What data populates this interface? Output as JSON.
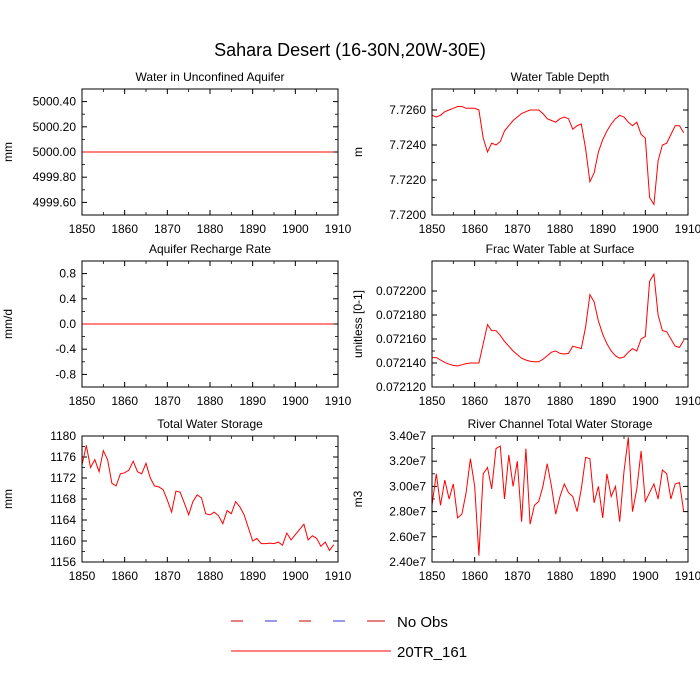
{
  "page_title": "Sahara Desert (16-30N,20W-30E)",
  "legend": [
    {
      "label": "No Obs",
      "style": "dashed",
      "colors": [
        "#cc0000",
        "#3333cc"
      ]
    },
    {
      "label": "20TR_161",
      "style": "solid",
      "colors": [
        "#ff0000"
      ]
    }
  ],
  "chart_data": [
    {
      "type": "line",
      "title": "Water in Unconfined Aquifer",
      "ylabel": "mm",
      "xlim": [
        1850,
        1910
      ],
      "ylim": [
        4999.5,
        5000.5
      ],
      "xticks": [
        "1850",
        "1860",
        "1870",
        "1880",
        "1890",
        "1900",
        "1910"
      ],
      "yticks": [
        {
          "v": 4999.6,
          "t": "4999.60"
        },
        {
          "v": 4999.8,
          "t": "4999.80"
        },
        {
          "v": 5000.0,
          "t": "5000.00"
        },
        {
          "v": 5000.2,
          "t": "5000.20"
        },
        {
          "v": 5000.4,
          "t": "5000.40"
        }
      ],
      "series": [
        {
          "name": "20TR_161",
          "color": "#ff0000",
          "x": [
            1850,
            1909
          ],
          "y": [
            5000.0,
            5000.0
          ]
        }
      ]
    },
    {
      "type": "line",
      "title": "Water Table Depth",
      "ylabel": "m",
      "xlim": [
        1850,
        1910
      ],
      "ylim": [
        7.72,
        7.7272
      ],
      "xticks": [
        "1850",
        "1860",
        "1870",
        "1880",
        "1890",
        "1900",
        "1910"
      ],
      "yticks": [
        {
          "v": 7.72,
          "t": "7.7200"
        },
        {
          "v": 7.722,
          "t": "7.7220"
        },
        {
          "v": 7.724,
          "t": "7.7240"
        },
        {
          "v": 7.726,
          "t": "7.7260"
        }
      ],
      "series": [
        {
          "name": "20TR_161",
          "color": "#ff0000",
          "x": [
            1850,
            1851,
            1852,
            1853,
            1854,
            1855,
            1856,
            1857,
            1858,
            1859,
            1860,
            1861,
            1862,
            1863,
            1864,
            1865,
            1866,
            1867,
            1868,
            1869,
            1870,
            1871,
            1872,
            1873,
            1874,
            1875,
            1876,
            1877,
            1878,
            1879,
            1880,
            1881,
            1882,
            1883,
            1884,
            1885,
            1886,
            1887,
            1888,
            1889,
            1890,
            1891,
            1892,
            1893,
            1894,
            1895,
            1896,
            1897,
            1898,
            1899,
            1900,
            1901,
            1902,
            1903,
            1904,
            1905,
            1906,
            1907,
            1908,
            1909
          ],
          "y": [
            7.7257,
            7.7256,
            7.7257,
            7.7259,
            7.726,
            7.7261,
            7.7262,
            7.7262,
            7.7261,
            7.7261,
            7.7261,
            7.726,
            7.7244,
            7.7236,
            7.7241,
            7.724,
            7.7242,
            7.7248,
            7.7251,
            7.7254,
            7.7256,
            7.7258,
            7.7259,
            7.726,
            7.726,
            7.726,
            7.7258,
            7.7255,
            7.7254,
            7.7253,
            7.7255,
            7.7256,
            7.7255,
            7.7249,
            7.7251,
            7.7252,
            7.7238,
            7.7219,
            7.7224,
            7.7236,
            7.7243,
            7.7248,
            7.7252,
            7.7255,
            7.7257,
            7.7256,
            7.7253,
            7.7251,
            7.7253,
            7.7246,
            7.7244,
            7.721,
            7.7206,
            7.7231,
            7.724,
            7.7241,
            7.7246,
            7.7251,
            7.7251,
            7.7247
          ]
        }
      ]
    },
    {
      "type": "line",
      "title": "Aquifer Recharge Rate",
      "ylabel": "mm/d",
      "xlim": [
        1850,
        1910
      ],
      "ylim": [
        -1.0,
        1.0
      ],
      "xticks": [
        "1850",
        "1860",
        "1870",
        "1880",
        "1890",
        "1900",
        "1910"
      ],
      "yticks": [
        {
          "v": -0.8,
          "t": "-0.8"
        },
        {
          "v": -0.4,
          "t": "-0.4"
        },
        {
          "v": 0.0,
          "t": "0.0"
        },
        {
          "v": 0.4,
          "t": "0.4"
        },
        {
          "v": 0.8,
          "t": "0.8"
        }
      ],
      "series": [
        {
          "name": "20TR_161",
          "color": "#ff0000",
          "x": [
            1850,
            1909
          ],
          "y": [
            0.0,
            0.0
          ]
        }
      ]
    },
    {
      "type": "line",
      "title": "Frac Water Table at Surface",
      "ylabel": "unitless [0-1]",
      "xlim": [
        1850,
        1910
      ],
      "ylim": [
        0.07212,
        0.072225
      ],
      "xticks": [
        "1850",
        "1860",
        "1870",
        "1880",
        "1890",
        "1900",
        "1910"
      ],
      "yticks": [
        {
          "v": 0.07212,
          "t": "0.072120"
        },
        {
          "v": 0.07214,
          "t": "0.072140"
        },
        {
          "v": 0.07216,
          "t": "0.072160"
        },
        {
          "v": 0.07218,
          "t": "0.072180"
        },
        {
          "v": 0.0722,
          "t": "0.072200"
        }
      ],
      "series": [
        {
          "name": "20TR_161",
          "color": "#ff0000",
          "x": [
            1850,
            1851,
            1852,
            1853,
            1854,
            1855,
            1856,
            1857,
            1858,
            1859,
            1860,
            1861,
            1862,
            1863,
            1864,
            1865,
            1866,
            1867,
            1868,
            1869,
            1870,
            1871,
            1872,
            1873,
            1874,
            1875,
            1876,
            1877,
            1878,
            1879,
            1880,
            1881,
            1882,
            1883,
            1884,
            1885,
            1886,
            1887,
            1888,
            1889,
            1890,
            1891,
            1892,
            1893,
            1894,
            1895,
            1896,
            1897,
            1898,
            1899,
            1900,
            1901,
            1902,
            1903,
            1904,
            1905,
            1906,
            1907,
            1908,
            1909
          ],
          "y": [
            0.0721445,
            0.0721445,
            0.0721425,
            0.0721405,
            0.072139,
            0.072138,
            0.0721375,
            0.0721385,
            0.0721395,
            0.07214,
            0.07214,
            0.07214,
            0.072156,
            0.072172,
            0.072167,
            0.072167,
            0.072163,
            0.072158,
            0.072154,
            0.07215,
            0.072147,
            0.072144,
            0.0721425,
            0.0721415,
            0.072141,
            0.072141,
            0.072143,
            0.072146,
            0.072149,
            0.07215,
            0.072148,
            0.0721475,
            0.072148,
            0.072154,
            0.072153,
            0.072152,
            0.07217,
            0.072197,
            0.072191,
            0.072175,
            0.072164,
            0.072156,
            0.07215,
            0.072146,
            0.072144,
            0.072145,
            0.072149,
            0.072152,
            0.07215,
            0.07216,
            0.072162,
            0.072208,
            0.072214,
            0.07218,
            0.072167,
            0.072166,
            0.07216,
            0.072154,
            0.072153,
            0.072159
          ]
        }
      ]
    },
    {
      "type": "line",
      "title": "Total Water Storage",
      "ylabel": "mm",
      "xlim": [
        1850,
        1910
      ],
      "ylim": [
        1156,
        1180
      ],
      "xticks": [
        "1850",
        "1860",
        "1870",
        "1880",
        "1890",
        "1900",
        "1910"
      ],
      "yticks": [
        {
          "v": 1156,
          "t": "1156"
        },
        {
          "v": 1160,
          "t": "1160"
        },
        {
          "v": 1164,
          "t": "1164"
        },
        {
          "v": 1168,
          "t": "1168"
        },
        {
          "v": 1172,
          "t": "1172"
        },
        {
          "v": 1176,
          "t": "1176"
        },
        {
          "v": 1180,
          "t": "1180"
        }
      ],
      "series": [
        {
          "name": "20TR_161",
          "color": "#ff0000",
          "x": [
            1850,
            1851,
            1852,
            1853,
            1854,
            1855,
            1856,
            1857,
            1858,
            1859,
            1860,
            1861,
            1862,
            1863,
            1864,
            1865,
            1866,
            1867,
            1868,
            1869,
            1870,
            1871,
            1872,
            1873,
            1874,
            1875,
            1876,
            1877,
            1878,
            1879,
            1880,
            1881,
            1882,
            1883,
            1884,
            1885,
            1886,
            1887,
            1888,
            1889,
            1890,
            1891,
            1892,
            1893,
            1894,
            1895,
            1896,
            1897,
            1898,
            1899,
            1900,
            1901,
            1902,
            1903,
            1904,
            1905,
            1906,
            1907,
            1908,
            1909
          ],
          "y": [
            1174.5,
            1178.2,
            1174,
            1175.5,
            1173.2,
            1177.2,
            1175.5,
            1171,
            1170.5,
            1172.8,
            1173,
            1173.5,
            1175.2,
            1173.2,
            1172.8,
            1174.8,
            1172,
            1170.5,
            1170.3,
            1169.8,
            1167.8,
            1165.5,
            1169.5,
            1169.3,
            1167.2,
            1165,
            1167.5,
            1168.8,
            1168.2,
            1165.2,
            1165,
            1165.5,
            1164.8,
            1163.3,
            1165.8,
            1165.2,
            1167.5,
            1166.5,
            1165,
            1162.5,
            1160,
            1160.5,
            1159.5,
            1159.5,
            1159.6,
            1159.5,
            1159.8,
            1159.2,
            1161.5,
            1160.2,
            1161.2,
            1162.2,
            1163.2,
            1160.2,
            1161,
            1160.5,
            1159,
            1159.8,
            1158.2,
            1159.3
          ]
        }
      ]
    },
    {
      "type": "line",
      "title": "River Channel Total Water Storage",
      "ylabel": "m3",
      "xlim": [
        1850,
        1910
      ],
      "ylim": [
        24000000,
        34000000
      ],
      "xticks": [
        "1850",
        "1860",
        "1870",
        "1880",
        "1890",
        "1900",
        "1910"
      ],
      "yticks": [
        {
          "v": 24000000,
          "t": "2.40e7"
        },
        {
          "v": 26000000,
          "t": "2.60e7"
        },
        {
          "v": 28000000,
          "t": "2.80e7"
        },
        {
          "v": 30000000,
          "t": "3.00e7"
        },
        {
          "v": 32000000,
          "t": "3.20e7"
        },
        {
          "v": 34000000,
          "t": "3.40e7"
        }
      ],
      "series": [
        {
          "name": "20TR_161",
          "color": "#ff0000",
          "x": [
            1850,
            1851,
            1852,
            1853,
            1854,
            1855,
            1856,
            1857,
            1858,
            1859,
            1860,
            1861,
            1862,
            1863,
            1864,
            1865,
            1866,
            1867,
            1868,
            1869,
            1870,
            1871,
            1872,
            1873,
            1874,
            1875,
            1876,
            1877,
            1878,
            1879,
            1880,
            1881,
            1882,
            1883,
            1884,
            1885,
            1886,
            1887,
            1888,
            1889,
            1890,
            1891,
            1892,
            1893,
            1894,
            1895,
            1896,
            1897,
            1898,
            1899,
            1900,
            1901,
            1902,
            1903,
            1904,
            1905,
            1906,
            1907,
            1908,
            1909
          ],
          "y": [
            28500000,
            31000000,
            28500000,
            30500000,
            29000000,
            30200000,
            27500000,
            27800000,
            29500000,
            32200000,
            30000000,
            24500000,
            31000000,
            31500000,
            29800000,
            33000000,
            33200000,
            29000000,
            32500000,
            30000000,
            32000000,
            27200000,
            33000000,
            27000000,
            28500000,
            28800000,
            30000000,
            31800000,
            30000000,
            27800000,
            29200000,
            30200000,
            29500000,
            29200000,
            28000000,
            29800000,
            32300000,
            32200000,
            28700000,
            30000000,
            27500000,
            31000000,
            29200000,
            30000000,
            27200000,
            31200000,
            33900000,
            28000000,
            29800000,
            32800000,
            28800000,
            29500000,
            30200000,
            29000000,
            31300000,
            31000000,
            29000000,
            30200000,
            30300000,
            28000000
          ]
        }
      ]
    }
  ]
}
